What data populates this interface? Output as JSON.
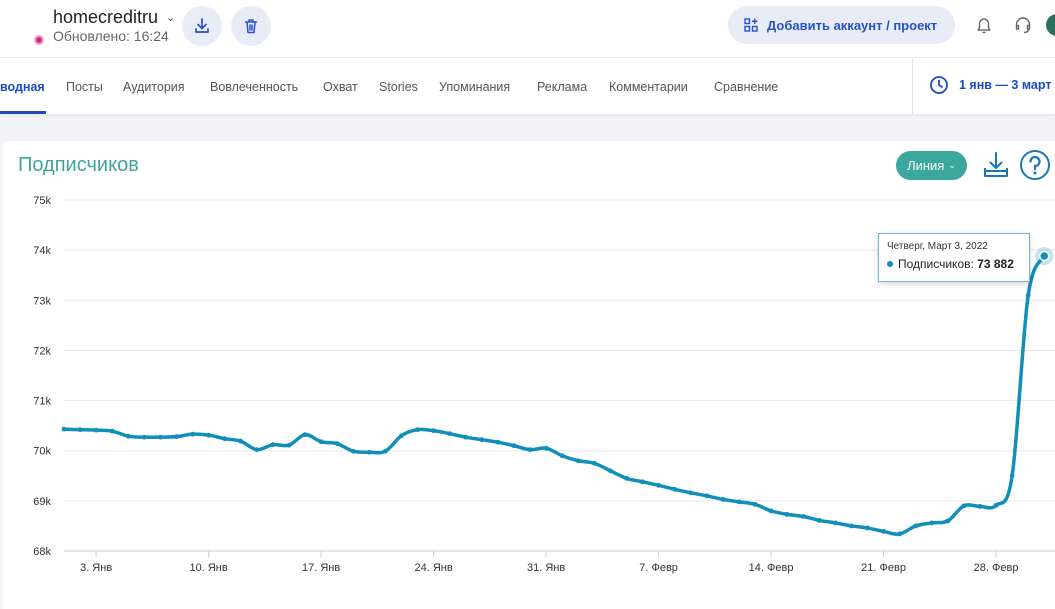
{
  "account": {
    "name": "homecreditru",
    "updated": "Обновлено: 16:24"
  },
  "header": {
    "add_label": "Добавить аккаунт / проект"
  },
  "tabs": [
    {
      "label": "водная"
    },
    {
      "label": "Посты"
    },
    {
      "label": "Аудитория"
    },
    {
      "label": "Вовлеченность"
    },
    {
      "label": "Охват"
    },
    {
      "label": "Stories"
    },
    {
      "label": "Упоминания"
    },
    {
      "label": "Реклама"
    },
    {
      "label": "Комментарии"
    },
    {
      "label": "Сравнение"
    }
  ],
  "date_range": "1 янв — 3 март",
  "card": {
    "title": "Подписчиков",
    "type_label": "Линия"
  },
  "tooltip": {
    "date": "Четверг, Март 3, 2022",
    "series": "Подписчиков",
    "value": "73 882"
  },
  "colors": {
    "line": "#118fb8",
    "accent": "#1e4ac2",
    "title": "#3fa59a",
    "button": "#3aa89d"
  },
  "chart_data": {
    "type": "line",
    "series": [
      {
        "name": "Подписчиков",
        "x": [
          "2022-01-01",
          "2022-01-02",
          "2022-01-03",
          "2022-01-04",
          "2022-01-05",
          "2022-01-06",
          "2022-01-07",
          "2022-01-08",
          "2022-01-09",
          "2022-01-10",
          "2022-01-11",
          "2022-01-12",
          "2022-01-13",
          "2022-01-14",
          "2022-01-15",
          "2022-01-16",
          "2022-01-17",
          "2022-01-18",
          "2022-01-19",
          "2022-01-20",
          "2022-01-21",
          "2022-01-22",
          "2022-01-23",
          "2022-01-24",
          "2022-01-25",
          "2022-01-26",
          "2022-01-27",
          "2022-01-28",
          "2022-01-29",
          "2022-01-30",
          "2022-01-31",
          "2022-02-01",
          "2022-02-02",
          "2022-02-03",
          "2022-02-04",
          "2022-02-05",
          "2022-02-06",
          "2022-02-07",
          "2022-02-08",
          "2022-02-09",
          "2022-02-10",
          "2022-02-11",
          "2022-02-12",
          "2022-02-13",
          "2022-02-14",
          "2022-02-15",
          "2022-02-16",
          "2022-02-17",
          "2022-02-18",
          "2022-02-19",
          "2022-02-20",
          "2022-02-21",
          "2022-02-22",
          "2022-02-23",
          "2022-02-24",
          "2022-02-25",
          "2022-02-26",
          "2022-02-27",
          "2022-02-28",
          "2022-03-01",
          "2022-03-02",
          "2022-03-03"
        ],
        "values": [
          70430,
          70420,
          70410,
          70390,
          70290,
          70270,
          70270,
          70280,
          70330,
          70310,
          70240,
          70190,
          70020,
          70120,
          70110,
          70320,
          70180,
          70140,
          69990,
          69970,
          69990,
          70300,
          70420,
          70400,
          70340,
          70270,
          70220,
          70170,
          70100,
          70020,
          70050,
          69900,
          69800,
          69750,
          69600,
          69450,
          69380,
          69310,
          69230,
          69160,
          69100,
          69030,
          68980,
          68930,
          68800,
          68730,
          68690,
          68610,
          68560,
          68500,
          68460,
          68390,
          68340,
          68500,
          68560,
          68600,
          68900,
          68890,
          68910,
          69500,
          73100,
          73882
        ]
      }
    ],
    "x_ticks": [
      "3. Янв",
      "10. Янв",
      "17. Янв",
      "24. Янв",
      "31. Янв",
      "7. Февр",
      "14. Февр",
      "21. Февр",
      "28. Февр"
    ],
    "y_ticks": [
      "68k",
      "69k",
      "70k",
      "71k",
      "72k",
      "73k",
      "74k",
      "75k"
    ],
    "ylim": [
      68000,
      75000
    ],
    "grid": true,
    "legend": "none"
  }
}
